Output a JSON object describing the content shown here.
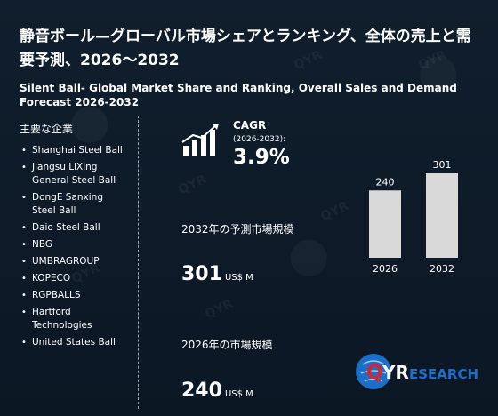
{
  "title_jp": "静音ボール—グローバル市場シェアとランキング、全体の売上と需要予測、2026～2032",
  "title_en": "Silent Ball- Global Market Share and Ranking, Overall Sales and Demand Forecast 2026-2032",
  "companies_heading": "主要な企業",
  "companies": [
    "Shanghai Steel Ball",
    "Jiangsu LiXing General Steel Ball",
    "DongE Sanxing Steel Ball",
    "Daio Steel Ball",
    "NBG",
    "UMBRAGROUP",
    "KOPECO",
    "RGPBALLS",
    "Hartford Technologies",
    "United States Ball"
  ],
  "cagr": {
    "label": "CAGR",
    "period": "(2026-2032):",
    "value": "3.9%"
  },
  "forecast": {
    "label": "2032年の予測市場規模",
    "value": "301",
    "unit": "US$ M"
  },
  "base": {
    "label": "2026年の市場規模",
    "value": "240",
    "unit": "US$ M"
  },
  "logo": {
    "q": "Q",
    "yr": "YR",
    "rest": "ESEARCH"
  },
  "colors": {
    "background": "#0f1c2b",
    "bar": "#d9d9d9",
    "logo_blue": "#1c6fc9",
    "logo_red": "#d9252a"
  },
  "chart_data": {
    "type": "bar",
    "categories": [
      "2026",
      "2032"
    ],
    "values": [
      240,
      301
    ],
    "ylim": [
      0,
      301
    ]
  }
}
